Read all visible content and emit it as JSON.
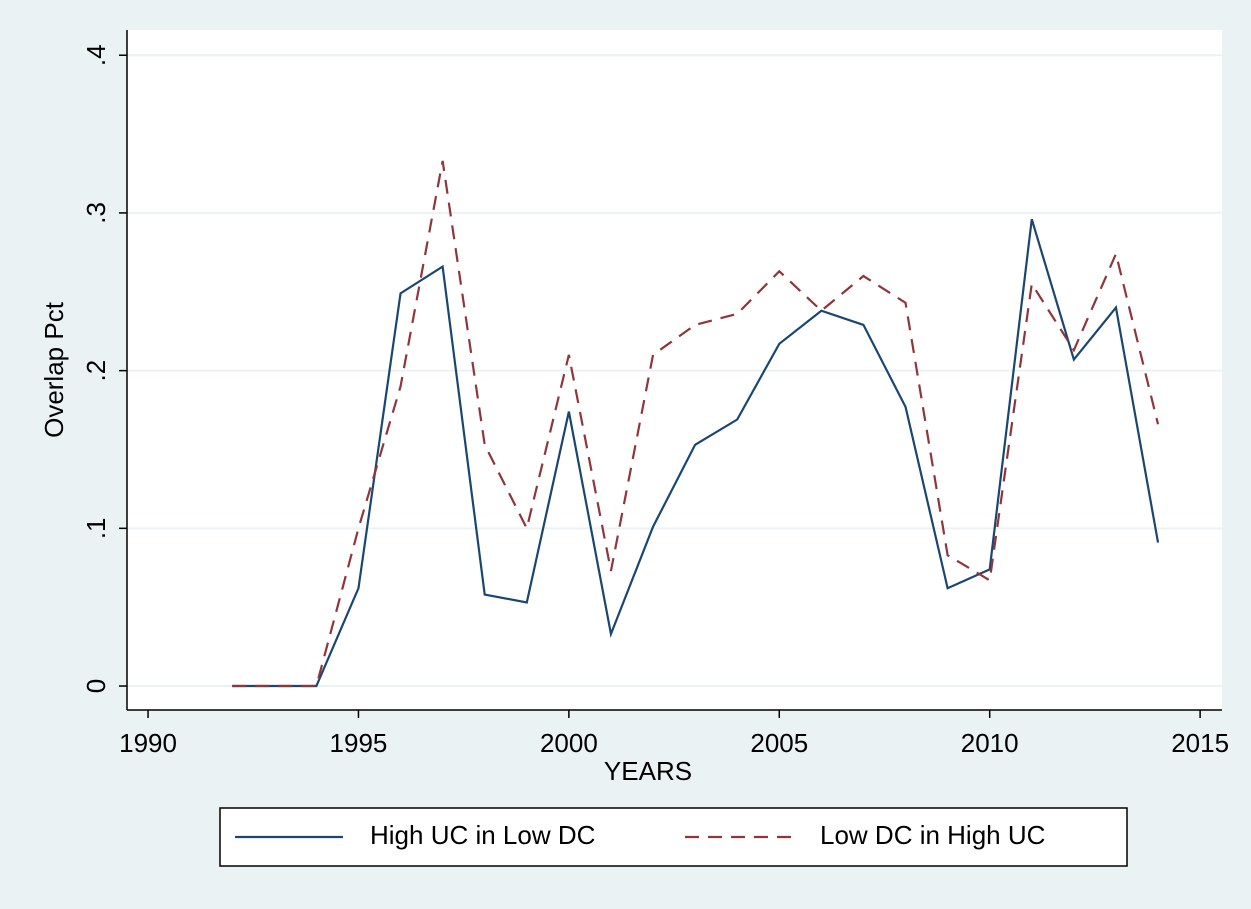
{
  "chart_data": {
    "type": "line",
    "x_label": "YEARS",
    "y_label": "Overlap Pct",
    "x": [
      1992,
      1993,
      1994,
      1995,
      1996,
      1997,
      1998,
      1999,
      2000,
      2001,
      2002,
      2003,
      2004,
      2005,
      2006,
      2007,
      2008,
      2009,
      2010,
      2011,
      2012,
      2013,
      2014
    ],
    "series": [
      {
        "name": "High UC in Low DC",
        "color": "#1a476f",
        "dash": "solid",
        "values": [
          0,
          0,
          0,
          0.062,
          0.249,
          0.266,
          0.058,
          0.053,
          0.174,
          0.033,
          0.101,
          0.153,
          0.169,
          0.217,
          0.238,
          0.229,
          0.177,
          0.062,
          0.074,
          0.296,
          0.207,
          0.24,
          0.091
        ]
      },
      {
        "name": "Low DC in High UC",
        "color": "#90353b",
        "dash": "dashed",
        "values": [
          0,
          0,
          0,
          0.1,
          0.19,
          0.333,
          0.153,
          0.1,
          0.21,
          0.073,
          0.21,
          0.229,
          0.236,
          0.263,
          0.238,
          0.26,
          0.243,
          0.083,
          0.067,
          0.255,
          0.213,
          0.274,
          0.166
        ]
      }
    ],
    "xlim": [
      1989.5,
      2015.52
    ],
    "xticks": [
      1990,
      1995,
      2000,
      2005,
      2010,
      2015
    ],
    "ylim": [
      -0.0152,
      0.416
    ],
    "yticks": [
      0,
      {
        "value": 0.1,
        "label": ".1"
      },
      {
        "value": 0.2,
        "label": ".2"
      },
      {
        "value": 0.3,
        "label": ".3"
      },
      {
        "value": 0.4,
        "label": ".4"
      }
    ],
    "grid": true,
    "legend": "bottom"
  }
}
